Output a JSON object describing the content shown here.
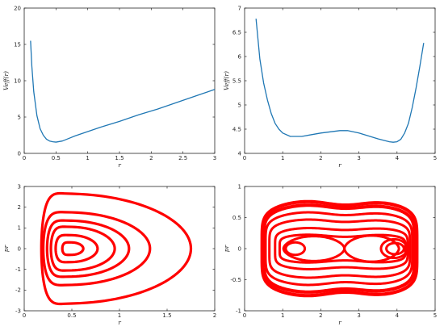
{
  "chart_data": [
    {
      "type": "line",
      "title": "",
      "xlabel": "r",
      "ylabel": "V_{eff}(r)",
      "ylabel_display": "Veff(r)",
      "xlim": [
        0,
        3
      ],
      "ylim": [
        0,
        20
      ],
      "xticks": [
        0,
        0.5,
        1,
        1.5,
        2,
        2.5,
        3
      ],
      "xtick_labels": [
        "0",
        "0.5",
        "1",
        "1.5",
        "2",
        "2.5",
        "3"
      ],
      "yticks": [
        0,
        5,
        10,
        15,
        20
      ],
      "ytick_labels": [
        "0",
        "5",
        "10",
        "15",
        "20"
      ],
      "grid": false,
      "series": [
        {
          "color": "#1f77b4",
          "x": [
            0.1,
            0.12,
            0.15,
            0.2,
            0.25,
            0.3,
            0.35,
            0.4,
            0.45,
            0.5,
            0.6,
            0.7,
            0.8,
            1.0,
            1.2,
            1.5,
            1.8,
            2.1,
            2.4,
            2.7,
            3.0
          ],
          "y": [
            15.5,
            12.0,
            8.5,
            5.2,
            3.4,
            2.5,
            1.95,
            1.7,
            1.6,
            1.55,
            1.7,
            2.05,
            2.4,
            3.0,
            3.6,
            4.4,
            5.3,
            6.1,
            7.0,
            7.9,
            8.8
          ]
        }
      ]
    },
    {
      "type": "line",
      "title": "",
      "xlabel": "r",
      "ylabel": "V_{eff}(r)",
      "ylabel_display": "Veff(r)",
      "xlim": [
        0,
        5
      ],
      "ylim": [
        4,
        7
      ],
      "xticks": [
        0,
        1,
        2,
        3,
        4,
        5
      ],
      "xtick_labels": [
        "0",
        "1",
        "2",
        "3",
        "4",
        "5"
      ],
      "yticks": [
        4,
        4.5,
        5,
        5.5,
        6,
        6.5,
        7
      ],
      "ytick_labels": [
        "4",
        "4.5",
        "5",
        "5.5",
        "6",
        "6.5",
        "7"
      ],
      "grid": false,
      "series": [
        {
          "color": "#1f77b4",
          "x": [
            0.3,
            0.4,
            0.5,
            0.6,
            0.7,
            0.8,
            0.9,
            1.0,
            1.2,
            1.5,
            2.0,
            2.5,
            2.7,
            3.0,
            3.5,
            3.8,
            3.9,
            4.0,
            4.1,
            4.2,
            4.3,
            4.4,
            4.5,
            4.6,
            4.7
          ],
          "y": [
            6.78,
            5.95,
            5.45,
            5.1,
            4.82,
            4.62,
            4.5,
            4.42,
            4.35,
            4.35,
            4.42,
            4.47,
            4.47,
            4.42,
            4.3,
            4.24,
            4.23,
            4.24,
            4.29,
            4.42,
            4.62,
            4.95,
            5.35,
            5.8,
            6.28
          ]
        }
      ]
    },
    {
      "type": "line",
      "subtype": "phase-portrait",
      "title": "",
      "xlabel": "r",
      "ylabel": "p_r",
      "ylabel_display": "pr",
      "xlim": [
        0,
        2
      ],
      "ylim": [
        -3,
        3
      ],
      "xticks": [
        0,
        0.5,
        1,
        1.5,
        2
      ],
      "xtick_labels": [
        "0",
        "0.5",
        "1",
        "1.5",
        "2"
      ],
      "yticks": [
        -3,
        -2,
        -1,
        0,
        1,
        2,
        3
      ],
      "ytick_labels": [
        "-3",
        "-2",
        "-1",
        "0",
        "1",
        "2",
        "3"
      ],
      "grid": false,
      "color": "#ff0000",
      "center": [
        0.5,
        0
      ],
      "orbits": [
        {
          "r_min": 0.4,
          "r_max": 0.62,
          "p_max": 0.3
        },
        {
          "r_min": 0.33,
          "r_max": 0.77,
          "p_max": 0.65
        },
        {
          "r_min": 0.28,
          "r_max": 0.95,
          "p_max": 1.05
        },
        {
          "r_min": 0.24,
          "r_max": 1.1,
          "p_max": 1.35
        },
        {
          "r_min": 0.2,
          "r_max": 1.32,
          "p_max": 1.75
        },
        {
          "r_min": 0.18,
          "r_max": 1.75,
          "p_max": 2.65
        }
      ]
    },
    {
      "type": "line",
      "subtype": "phase-portrait",
      "title": "",
      "xlabel": "r",
      "ylabel": "p_r",
      "ylabel_display": "pr",
      "xlim": [
        0,
        5
      ],
      "ylim": [
        -1,
        1
      ],
      "xticks": [
        0,
        1,
        2,
        3,
        4,
        5
      ],
      "xtick_labels": [
        "0",
        "1",
        "2",
        "3",
        "4",
        "5"
      ],
      "yticks": [
        -1,
        -0.5,
        0,
        0.5,
        1
      ],
      "ytick_labels": [
        "-1",
        "-0.5",
        "0",
        "0.5",
        "1"
      ],
      "grid": false,
      "color": "#ff0000",
      "separatrix": {
        "r_left": 1.02,
        "r_saddle": 2.62,
        "r_right": 4.05,
        "lobe_height_left": 0.2,
        "lobe_height_right": 0.21
      },
      "left_well_orbits": [
        {
          "r_min": 1.08,
          "r_max": 1.58,
          "p_max": 0.1
        }
      ],
      "right_well_orbits": [
        {
          "r_min": 3.72,
          "r_max": 4.18,
          "p_max": 0.09
        },
        {
          "r_min": 3.58,
          "r_max": 4.27,
          "p_max": 0.15
        }
      ],
      "outer_orbits": [
        {
          "r_min": 0.92,
          "r_max": 4.22,
          "p_max": 0.25,
          "waist": 0.19
        },
        {
          "r_min": 0.8,
          "r_max": 4.28,
          "p_max": 0.36,
          "waist": 0.3
        },
        {
          "r_min": 0.65,
          "r_max": 4.34,
          "p_max": 0.5,
          "waist": 0.43
        },
        {
          "r_min": 0.55,
          "r_max": 4.4,
          "p_max": 0.62,
          "waist": 0.54
        },
        {
          "r_min": 0.5,
          "r_max": 4.46,
          "p_max": 0.74,
          "waist": 0.65
        },
        {
          "r_min": 0.46,
          "r_max": 4.52,
          "p_max": 0.8,
          "waist": 0.7
        }
      ]
    }
  ]
}
